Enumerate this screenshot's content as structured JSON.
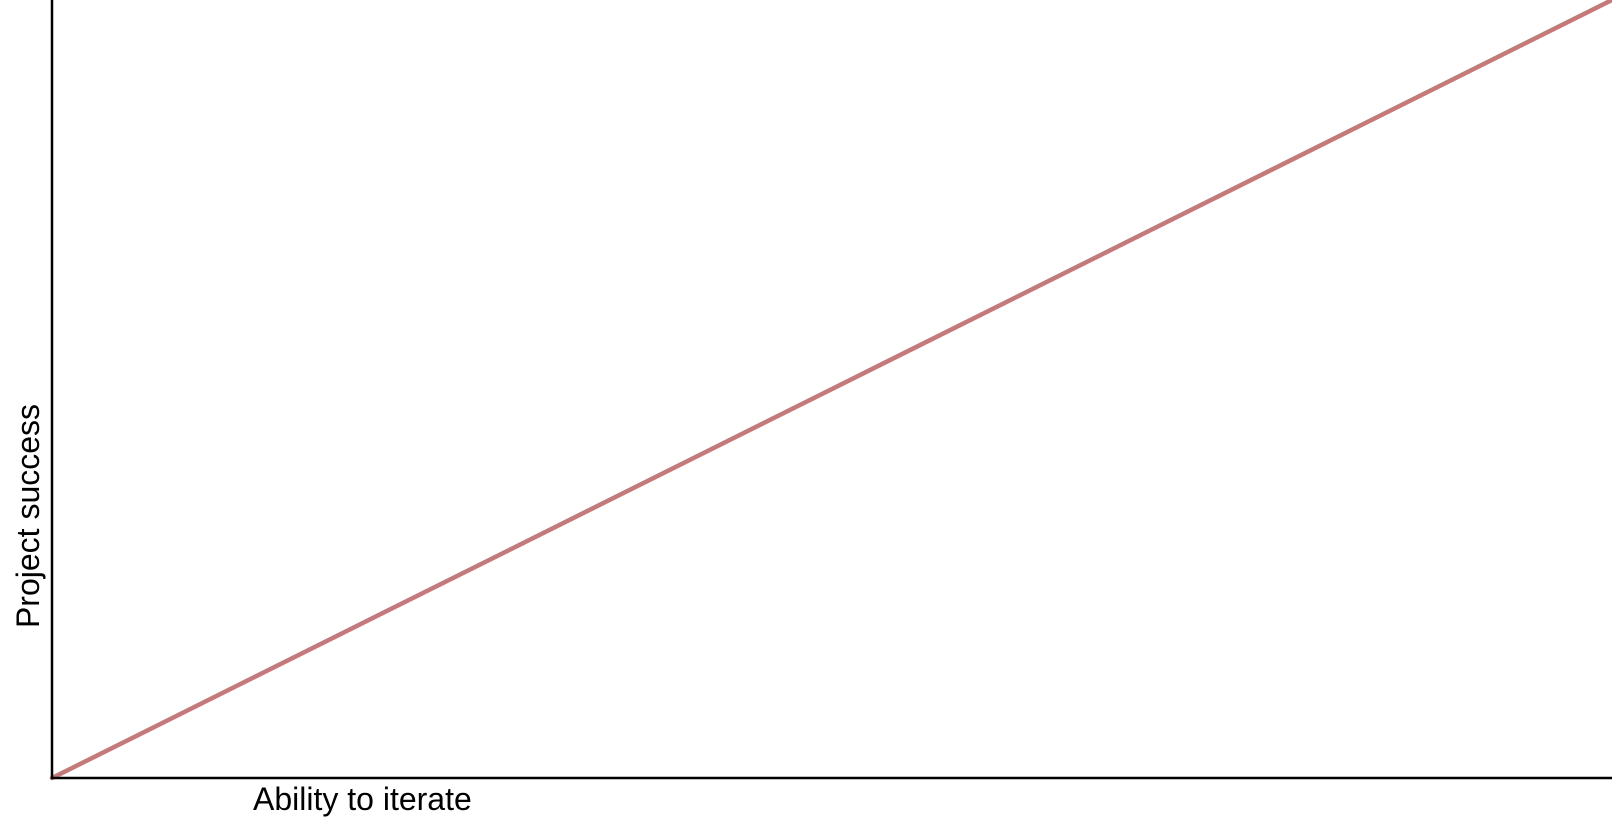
{
  "chart_data": {
    "type": "line",
    "title": "",
    "xlabel": "Ability to iterate",
    "ylabel": "Project success",
    "xlim": [
      0,
      1
    ],
    "ylim": [
      0,
      1
    ],
    "grid": false,
    "series": [
      {
        "color": "#c47a7a",
        "x": [
          0,
          1
        ],
        "y": [
          0,
          1
        ]
      }
    ]
  }
}
